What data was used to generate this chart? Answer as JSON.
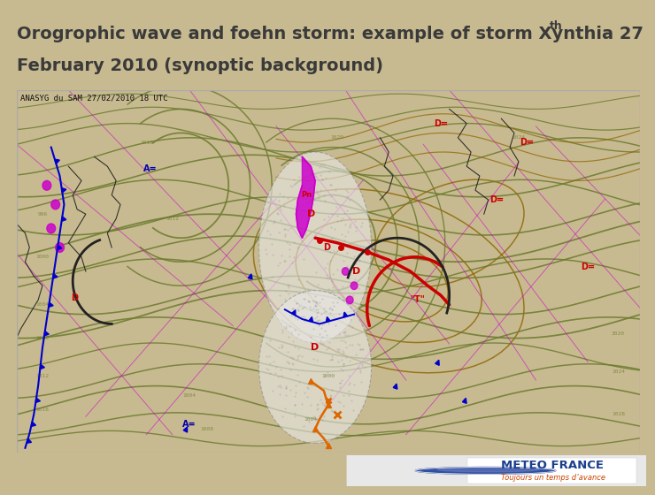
{
  "title_line1": "Orogrophic wave and foehn storm: example of storm Xynthia 27",
  "title_superscript": "th",
  "title_line2": "February 2010 (synoptic background)",
  "title_bg_color": "#E8D8A0",
  "title_text_color": "#3A3A3A",
  "slide_bg_color": "#C8BA90",
  "map_bg_color": "#FFFFFF",
  "map_border_color": "#888888",
  "map_label": "ANASYG du SAM 27/02/2010 18 UTC",
  "meteo_france_text": "METEO FRANCE",
  "meteo_france_sub": "Toujours un temps d’avance",
  "meteo_france_color": "#1A3F8C",
  "meteo_france_sub_color": "#CC4400",
  "footer_bg": "#FFFFFF",
  "title_font_size": 14,
  "map_label_font_size": 6.5,
  "isobar_color": "#6B7B2F",
  "magenta_color": "#CC00CC",
  "brown_color": "#8B6400",
  "blue_front_color": "#0000CC",
  "red_front_color": "#CC0000",
  "black_front_color": "#222222",
  "orange_color": "#DD6600"
}
